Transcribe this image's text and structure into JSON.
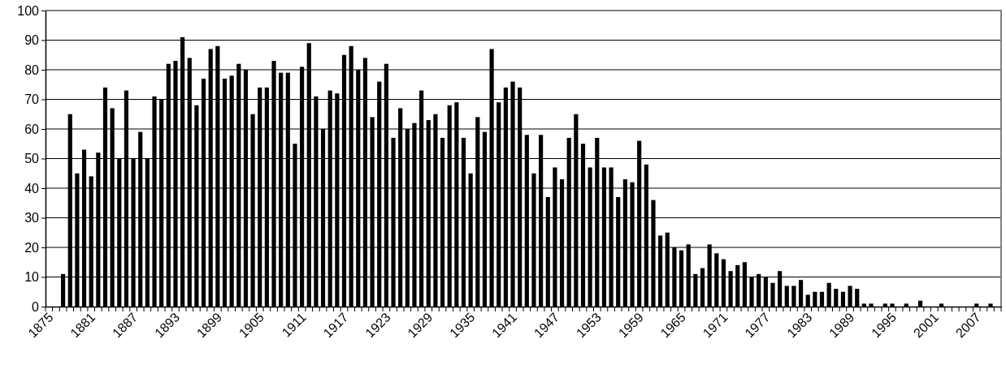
{
  "chart_data": {
    "type": "bar",
    "categories": [
      "1875",
      null,
      null,
      null,
      null,
      null,
      "1881",
      null,
      null,
      null,
      null,
      null,
      "1887",
      null,
      null,
      null,
      null,
      null,
      "1893",
      null,
      null,
      null,
      null,
      null,
      "1899",
      null,
      null,
      null,
      null,
      null,
      "1905",
      null,
      null,
      null,
      null,
      null,
      "1911",
      null,
      null,
      null,
      null,
      null,
      "1917",
      null,
      null,
      null,
      null,
      null,
      "1923",
      null,
      null,
      null,
      null,
      null,
      "1929",
      null,
      null,
      null,
      null,
      null,
      "1935",
      null,
      null,
      null,
      null,
      null,
      "1941",
      null,
      null,
      null,
      null,
      null,
      "1947",
      null,
      null,
      null,
      null,
      null,
      "1953",
      null,
      null,
      null,
      null,
      null,
      "1959",
      null,
      null,
      null,
      null,
      null,
      "1965",
      null,
      null,
      null,
      null,
      null,
      "1971",
      null,
      null,
      null,
      null,
      null,
      "1977",
      null,
      null,
      null,
      null,
      null,
      "1983",
      null,
      null,
      null,
      null,
      null,
      "1989",
      null,
      null,
      null,
      null,
      null,
      "1995",
      null,
      null,
      null,
      null,
      null,
      "2001",
      null,
      null,
      null,
      null,
      null,
      "2007",
      null,
      null,
      null
    ],
    "values": [
      0,
      0,
      11,
      65,
      45,
      53,
      44,
      52,
      74,
      67,
      50,
      73,
      50,
      59,
      50,
      71,
      70,
      82,
      83,
      91,
      84,
      68,
      77,
      87,
      88,
      77,
      78,
      82,
      80,
      65,
      74,
      74,
      83,
      79,
      79,
      55,
      81,
      89,
      71,
      60,
      73,
      72,
      85,
      88,
      80,
      84,
      64,
      76,
      82,
      57,
      67,
      60,
      62,
      73,
      63,
      65,
      57,
      68,
      69,
      57,
      45,
      64,
      59,
      87,
      69,
      74,
      76,
      74,
      58,
      45,
      58,
      37,
      47,
      43,
      57,
      65,
      55,
      47,
      57,
      47,
      47,
      37,
      43,
      42,
      56,
      48,
      36,
      24,
      25,
      20,
      19,
      21,
      11,
      13,
      21,
      18,
      16,
      12,
      14,
      15,
      10,
      11,
      10,
      8,
      12,
      7,
      7,
      9,
      4,
      5,
      5,
      8,
      6,
      5,
      7,
      6,
      1,
      1,
      0,
      1,
      1,
      0,
      1,
      0,
      2,
      0,
      0,
      1,
      0,
      0,
      0,
      0,
      1,
      0,
      1,
      0
    ],
    "color": "#000000",
    "ylim": [
      0,
      100
    ],
    "yticks": [
      0,
      10,
      20,
      30,
      40,
      50,
      60,
      70,
      80,
      90,
      100
    ],
    "grid": "y"
  }
}
